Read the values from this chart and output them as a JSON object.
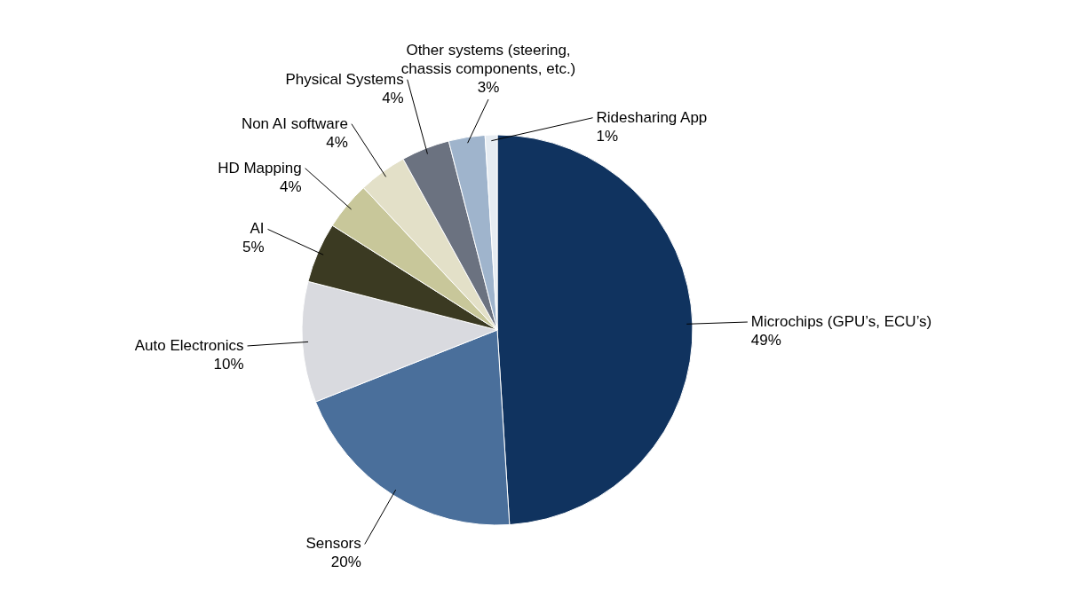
{
  "chart_data": {
    "type": "pie",
    "categories": [
      "Microchips (GPU’s, ECU’s)",
      "Sensors",
      "Auto Electronics",
      "AI",
      "HD Mapping",
      "Non AI software",
      "Physical Systems",
      "Other systems (steering, chassis components, etc.)",
      "Ridesharing App"
    ],
    "values": [
      49,
      20,
      10,
      5,
      4,
      4,
      4,
      3,
      1
    ],
    "value_labels": [
      "49%",
      "20%",
      "10%",
      "5%",
      "4%",
      "4%",
      "4%",
      "3%",
      "1%"
    ],
    "colors": [
      "#10335f",
      "#4a6f9b",
      "#d9dadf",
      "#3b3a22",
      "#c8c79a",
      "#e3e0c8",
      "#6b7280",
      "#9fb4cc",
      "#e6ecf2"
    ]
  }
}
